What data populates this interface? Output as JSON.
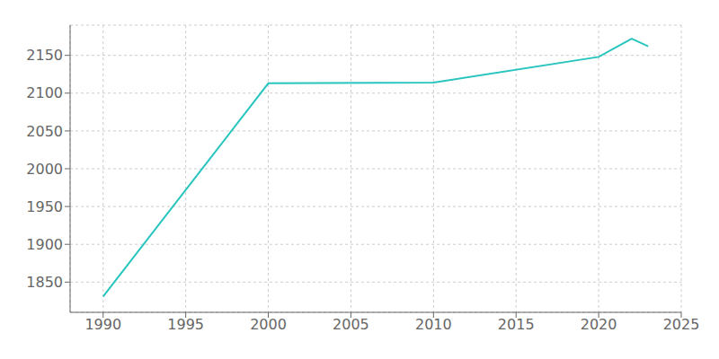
{
  "chart_data": {
    "type": "line",
    "x": [
      1990,
      2000,
      2010,
      2020,
      2022,
      2023
    ],
    "values": [
      1831,
      2113,
      2114,
      2148,
      2172,
      2162
    ],
    "color": "#28C5BF",
    "xlim": [
      1988,
      2025
    ],
    "ylim": [
      1810,
      2190
    ],
    "xticks": [
      1990,
      1995,
      2000,
      2005,
      2010,
      2015,
      2020,
      2025
    ],
    "yticks": [
      1850,
      1900,
      1950,
      2000,
      2050,
      2100,
      2150
    ],
    "grid": true
  }
}
